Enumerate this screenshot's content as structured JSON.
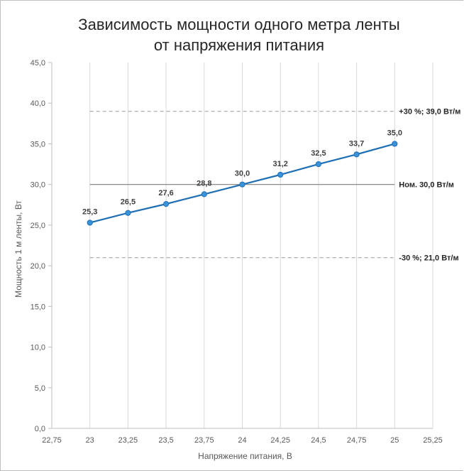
{
  "chart_data": {
    "type": "line",
    "title_lines": [
      "Зависимость мощности одного метра ленты",
      "от напряжения питания"
    ],
    "xlabel": "Напряжение питания, В",
    "ylabel": "Мощность 1 м ленты, Вт",
    "xlim": [
      22.75,
      25.25
    ],
    "ylim": [
      0,
      45
    ],
    "x_ticks": [
      22.75,
      23,
      23.25,
      23.5,
      23.75,
      24,
      24.25,
      24.5,
      24.75,
      25,
      25.25
    ],
    "x_tick_labels": [
      "22,75",
      "23",
      "23,25",
      "23,5",
      "23,75",
      "24",
      "24,25",
      "24,5",
      "24,75",
      "25",
      "25,25"
    ],
    "y_ticks": [
      0,
      5,
      10,
      15,
      20,
      25,
      30,
      35,
      40,
      45
    ],
    "y_tick_labels": [
      "0,0",
      "5,0",
      "10,0",
      "15,0",
      "20,0",
      "25,0",
      "30,0",
      "35,0",
      "40,0",
      "45,0"
    ],
    "grid": "vertical",
    "series": [
      {
        "x": [
          23,
          23.25,
          23.5,
          23.75,
          24,
          24.25,
          24.5,
          24.75,
          25
        ],
        "y": [
          25.3,
          26.5,
          27.6,
          28.8,
          30.0,
          31.2,
          32.5,
          33.7,
          35.0
        ],
        "labels": [
          "25,3",
          "26,5",
          "27,6",
          "28,8",
          "30,0",
          "31,2",
          "32,5",
          "33,7",
          "35,0"
        ],
        "color": "#1f6fb5",
        "marker_color": "#3a93d9"
      }
    ],
    "reference_lines": [
      {
        "y": 39.0,
        "x_start": 23,
        "x_end": 25,
        "style": "dashed",
        "color": "#a6a6a6",
        "label": "+30 %; 39,0 Вт/м"
      },
      {
        "y": 30.0,
        "x_start": 23,
        "x_end": 25,
        "style": "solid",
        "color": "#7f7f7f",
        "label": "Ном. 30,0 Вт/м"
      },
      {
        "y": 21.0,
        "x_start": 23,
        "x_end": 25,
        "style": "dashed",
        "color": "#a6a6a6",
        "label": "-30 %; 21,0 Вт/м"
      }
    ]
  }
}
